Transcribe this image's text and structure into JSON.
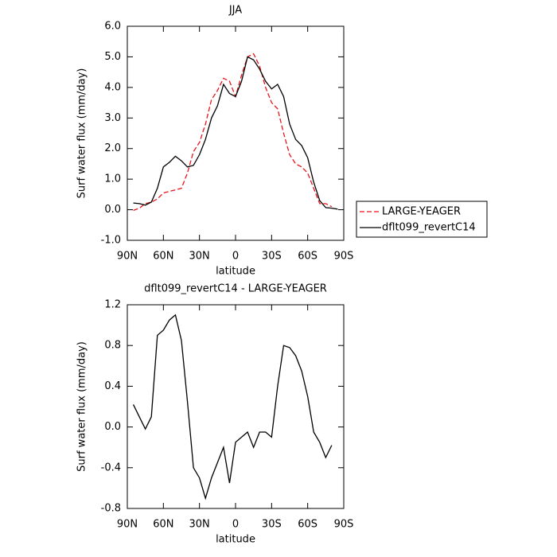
{
  "chart_data": [
    {
      "type": "line",
      "title": "JJA",
      "xlabel": "latitude",
      "ylabel": "Surf water flux (mm/day)",
      "x": [
        85,
        80,
        75,
        70,
        65,
        60,
        55,
        50,
        45,
        40,
        35,
        30,
        25,
        20,
        15,
        10,
        5,
        0,
        -5,
        -10,
        -15,
        -20,
        -25,
        -30,
        -35,
        -40,
        -45,
        -50,
        -55,
        -60,
        -65,
        -70,
        -75,
        -80,
        -85
      ],
      "series": [
        {
          "name": "LARGE-YEAGER",
          "color": "#e8141c",
          "linestyle": "dashed",
          "values": [
            -0.02,
            0.05,
            0.2,
            0.25,
            0.35,
            0.55,
            0.6,
            0.65,
            0.7,
            1.2,
            1.9,
            2.2,
            2.8,
            3.6,
            3.9,
            4.3,
            4.2,
            3.7,
            4.4,
            5.0,
            5.1,
            4.7,
            4.0,
            3.5,
            3.3,
            2.5,
            1.8,
            1.5,
            1.4,
            1.2,
            0.7,
            0.2,
            0.2,
            0.1,
            null
          ]
        },
        {
          "name": "dflt099_revertC14",
          "color": "#000000",
          "linestyle": "solid",
          "values": [
            0.22,
            0.2,
            0.15,
            0.25,
            0.7,
            1.4,
            1.55,
            1.75,
            1.6,
            1.4,
            1.45,
            1.8,
            2.3,
            3.0,
            3.4,
            4.1,
            3.8,
            3.7,
            4.2,
            5.0,
            4.9,
            4.6,
            4.2,
            3.95,
            4.1,
            3.7,
            2.8,
            2.3,
            2.1,
            1.7,
            0.9,
            0.3,
            0.07,
            0.05,
            0.02
          ]
        }
      ],
      "xlim": [
        90,
        -90
      ],
      "xticks": [
        {
          "value": 90,
          "label": "90N"
        },
        {
          "value": 60,
          "label": "60N"
        },
        {
          "value": 30,
          "label": "30N"
        },
        0,
        {
          "value": -30,
          "label": "30S"
        },
        {
          "value": -60,
          "label": "60S"
        },
        {
          "value": -90,
          "label": "90S"
        }
      ],
      "ylim": [
        -1,
        6
      ],
      "yticks": [
        {
          "value": -1,
          "label": "-1.0"
        },
        {
          "value": 0,
          "label": "0.0"
        },
        {
          "value": 1,
          "label": "1.0"
        },
        {
          "value": 2,
          "label": "2.0"
        },
        {
          "value": 3,
          "label": "3.0"
        },
        {
          "value": 4,
          "label": "4.0"
        },
        {
          "value": 5,
          "label": "5.0"
        },
        {
          "value": 6,
          "label": "6.0"
        }
      ],
      "legend": "right"
    },
    {
      "type": "line",
      "title": "dflt099_revertC14 - LARGE-YEAGER",
      "xlabel": "latitude",
      "ylabel": "Surf water flux (mm/day)",
      "x": [
        85,
        80,
        75,
        70,
        65,
        60,
        55,
        50,
        45,
        40,
        35,
        30,
        25,
        20,
        15,
        10,
        5,
        0,
        -5,
        -10,
        -15,
        -20,
        -25,
        -30,
        -35,
        -40,
        -45,
        -50,
        -55,
        -60,
        -65,
        -70,
        -75,
        -80,
        -85
      ],
      "series": [
        {
          "color": "#000000",
          "linestyle": "solid",
          "values": [
            0.22,
            0.1,
            -0.02,
            0.1,
            0.9,
            0.95,
            1.05,
            1.1,
            0.85,
            0.25,
            -0.4,
            -0.5,
            -0.7,
            -0.5,
            -0.35,
            -0.2,
            -0.55,
            -0.15,
            -0.1,
            -0.05,
            -0.2,
            -0.05,
            -0.05,
            -0.1,
            0.4,
            0.8,
            0.78,
            0.7,
            0.55,
            0.3,
            -0.05,
            -0.15,
            -0.3,
            -0.18,
            null
          ]
        }
      ],
      "xlim": [
        90,
        -90
      ],
      "xticks": [
        {
          "value": 90,
          "label": "90N"
        },
        {
          "value": 60,
          "label": "60N"
        },
        {
          "value": 30,
          "label": "30N"
        },
        0,
        {
          "value": -30,
          "label": "30S"
        },
        {
          "value": -60,
          "label": "60S"
        },
        {
          "value": -90,
          "label": "90S"
        }
      ],
      "ylim": [
        -0.8,
        1.2
      ],
      "yticks": [
        -0.8,
        -0.4,
        {
          "value": 0,
          "label": "0.0"
        },
        0.4,
        0.8,
        1.2
      ]
    }
  ]
}
